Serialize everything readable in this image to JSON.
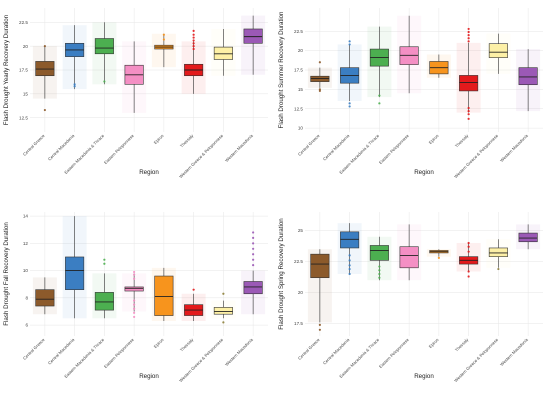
{
  "chart_data": [
    {
      "type": "box",
      "xlabel": "Region",
      "ylabel": "Flash Drought Yearly Recovery Duration",
      "ylim": [
        11,
        24
      ],
      "yticks": [
        12.5,
        15.0,
        17.5,
        20.0,
        22.5
      ],
      "categories": [
        "Central Greece",
        "Central Macedonia",
        "Eastern Macedonia & Thrace",
        "Eastern Peloponnese",
        "Epirus",
        "Thessaly",
        "Western Greece & Peloponnese",
        "Western Macedonia"
      ],
      "colors": [
        "#8c5a2b",
        "#3b7ec2",
        "#4caf50",
        "#f48fc4",
        "#f7941d",
        "#e31a1c",
        "#fdf0a6",
        "#9b59b6"
      ],
      "boxes": [
        {
          "min": 14.5,
          "q1": 16.9,
          "median": 17.6,
          "q3": 18.4,
          "max": 20.0,
          "outliers": [
            13.3,
            20.0
          ]
        },
        {
          "min": 15.5,
          "q1": 18.9,
          "median": 19.6,
          "q3": 20.3,
          "max": 22.2,
          "outliers": [
            15.8,
            16.0
          ]
        },
        {
          "min": 16.0,
          "q1": 19.2,
          "median": 19.8,
          "q3": 20.8,
          "max": 22.5,
          "outliers": [
            16.3
          ]
        },
        {
          "min": 13.0,
          "q1": 16.0,
          "median": 17.0,
          "q3": 18.0,
          "max": 20.5,
          "outliers": []
        },
        {
          "min": 17.8,
          "q1": 19.7,
          "median": 19.9,
          "q3": 20.1,
          "max": 21.3,
          "outliers": [
            20.7,
            21.2
          ]
        },
        {
          "min": 15.0,
          "q1": 16.9,
          "median": 17.5,
          "q3": 18.1,
          "max": 20.5,
          "outliers": [
            19.7,
            20.0,
            20.3,
            20.6,
            20.9,
            21.2,
            21.6
          ]
        },
        {
          "min": 16.9,
          "q1": 18.6,
          "median": 19.2,
          "q3": 19.9,
          "max": 21.8,
          "outliers": []
        },
        {
          "min": 17.0,
          "q1": 20.3,
          "median": 21.0,
          "q3": 21.8,
          "max": 23.2,
          "outliers": []
        }
      ]
    },
    {
      "type": "box",
      "xlabel": "Region",
      "ylabel": "Flash Drought Summer Recovery Duration",
      "ylim": [
        9.5,
        25.5
      ],
      "yticks": [
        10.0,
        12.5,
        15.0,
        17.5,
        20.0,
        22.5
      ],
      "categories": [
        "Central Greece",
        "Central Macedonia",
        "Eastern Macedonia & Thrace",
        "Eastern Peloponnese",
        "Epirus",
        "Thessaly",
        "Western Greece & Peloponnese",
        "Western Macedonia"
      ],
      "colors": [
        "#8c5a2b",
        "#3b7ec2",
        "#4caf50",
        "#f48fc4",
        "#f7941d",
        "#e31a1c",
        "#fdf0a6",
        "#9b59b6"
      ],
      "boxes": [
        {
          "min": 15.2,
          "q1": 16.0,
          "median": 16.4,
          "q3": 16.7,
          "max": 17.8,
          "outliers": [
            14.8,
            15.0,
            18.5
          ]
        },
        {
          "min": 13.5,
          "q1": 15.8,
          "median": 16.8,
          "q3": 17.8,
          "max": 20.8,
          "outliers": [
            12.8,
            13.2,
            20.8,
            21.2
          ]
        },
        {
          "min": 14.0,
          "q1": 18.0,
          "median": 19.1,
          "q3": 20.2,
          "max": 23.1,
          "outliers": [
            13.2,
            14.2
          ]
        },
        {
          "min": 14.5,
          "q1": 18.2,
          "median": 19.4,
          "q3": 20.5,
          "max": 24.5,
          "outliers": []
        },
        {
          "min": 16.5,
          "q1": 17.0,
          "median": 17.8,
          "q3": 18.6,
          "max": 19.5,
          "outliers": []
        },
        {
          "min": 12.0,
          "q1": 14.8,
          "median": 15.9,
          "q3": 16.8,
          "max": 21.0,
          "outliers": [
            11.2,
            11.8,
            12.2,
            12.6,
            21.2,
            21.6,
            22.0,
            22.4,
            22.8
          ]
        },
        {
          "min": 17.0,
          "q1": 19.1,
          "median": 19.8,
          "q3": 20.9,
          "max": 22.2,
          "outliers": []
        },
        {
          "min": 12.2,
          "q1": 15.6,
          "median": 16.6,
          "q3": 17.8,
          "max": 20.2,
          "outliers": []
        }
      ]
    },
    {
      "type": "box",
      "xlabel": "Region",
      "ylabel": "Flash Drought Fall Recovery Duration",
      "ylim": [
        5.2,
        14.3
      ],
      "yticks": [
        6,
        8,
        10,
        12,
        14
      ],
      "categories": [
        "Central Greece",
        "Central Macedonia",
        "Eastern Macedonia & Thrace",
        "Eastern Peloponnese",
        "Epirus",
        "Thessaly",
        "Western Greece & Peloponnese",
        "Western Macedonia"
      ],
      "colors": [
        "#8c5a2b",
        "#3b7ec2",
        "#4caf50",
        "#f48fc4",
        "#f7941d",
        "#e31a1c",
        "#fdf0a6",
        "#9b59b6"
      ],
      "boxes": [
        {
          "min": 6.8,
          "q1": 7.4,
          "median": 7.9,
          "q3": 8.6,
          "max": 9.5,
          "outliers": []
        },
        {
          "min": 6.5,
          "q1": 8.6,
          "median": 10.0,
          "q3": 11.0,
          "max": 14.0,
          "outliers": []
        },
        {
          "min": 6.5,
          "q1": 7.1,
          "median": 7.7,
          "q3": 8.4,
          "max": 9.8,
          "outliers": [
            10.5,
            10.8
          ]
        },
        {
          "min": 7.0,
          "q1": 8.5,
          "median": 8.7,
          "q3": 8.8,
          "max": 9.8,
          "outliers": [
            6.6,
            6.9,
            7.2,
            7.5,
            7.8,
            9.4,
            9.7,
            9.9
          ]
        },
        {
          "min": 6.3,
          "q1": 6.7,
          "median": 8.1,
          "q3": 9.6,
          "max": 10.2,
          "outliers": []
        },
        {
          "min": 6.3,
          "q1": 6.7,
          "median": 7.1,
          "q3": 7.5,
          "max": 8.3,
          "outliers": [
            8.6
          ]
        },
        {
          "min": 6.5,
          "q1": 6.8,
          "median": 7.0,
          "q3": 7.3,
          "max": 7.8,
          "outliers": [
            6.2,
            8.3
          ]
        },
        {
          "min": 6.8,
          "q1": 8.3,
          "median": 8.8,
          "q3": 9.2,
          "max": 10.0,
          "outliers": [
            10.4,
            10.8,
            11.2,
            11.6,
            12.0,
            12.4,
            12.8
          ]
        }
      ]
    },
    {
      "type": "box",
      "xlabel": "Region",
      "ylabel": "Flash Drought Spring Recovery Duration",
      "ylim": [
        16.5,
        26.5
      ],
      "yticks": [
        17.5,
        20.0,
        22.5,
        25.0
      ],
      "categories": [
        "Central Greece",
        "Central Macedonia",
        "Eastern Macedonia & Thrace",
        "Eastern Peloponnese",
        "Epirus",
        "Thessaly",
        "Western Greece & Peloponnese",
        "Western Macedonia"
      ],
      "colors": [
        "#8c5a2b",
        "#3b7ec2",
        "#4caf50",
        "#f48fc4",
        "#f7941d",
        "#e31a1c",
        "#fdf0a6",
        "#9b59b6"
      ],
      "boxes": [
        {
          "min": 17.6,
          "q1": 21.2,
          "median": 22.3,
          "q3": 23.1,
          "max": 23.5,
          "outliers": [
            17.0,
            17.4
          ]
        },
        {
          "min": 21.5,
          "q1": 23.6,
          "median": 24.3,
          "q3": 24.9,
          "max": 25.6,
          "outliers": [
            21.5,
            21.9,
            22.2,
            22.6,
            23.0
          ]
        },
        {
          "min": 21.0,
          "q1": 22.6,
          "median": 23.4,
          "q3": 23.8,
          "max": 24.5,
          "outliers": [
            21.2,
            21.5,
            21.8,
            22.1
          ]
        },
        {
          "min": 21.0,
          "q1": 22.0,
          "median": 23.0,
          "q3": 23.7,
          "max": 25.5,
          "outliers": []
        },
        {
          "min": 22.9,
          "q1": 23.2,
          "median": 23.3,
          "q3": 23.4,
          "max": 23.5,
          "outliers": [
            22.8
          ]
        },
        {
          "min": 21.7,
          "q1": 22.3,
          "median": 22.6,
          "q3": 22.9,
          "max": 24.0,
          "outliers": [
            21.3,
            21.7,
            23.3,
            23.7,
            24.0
          ]
        },
        {
          "min": 22.0,
          "q1": 22.9,
          "median": 23.2,
          "q3": 23.6,
          "max": 24.3,
          "outliers": [
            21.9
          ]
        },
        {
          "min": 23.5,
          "q1": 24.1,
          "median": 24.4,
          "q3": 24.8,
          "max": 25.5,
          "outliers": []
        }
      ]
    }
  ]
}
